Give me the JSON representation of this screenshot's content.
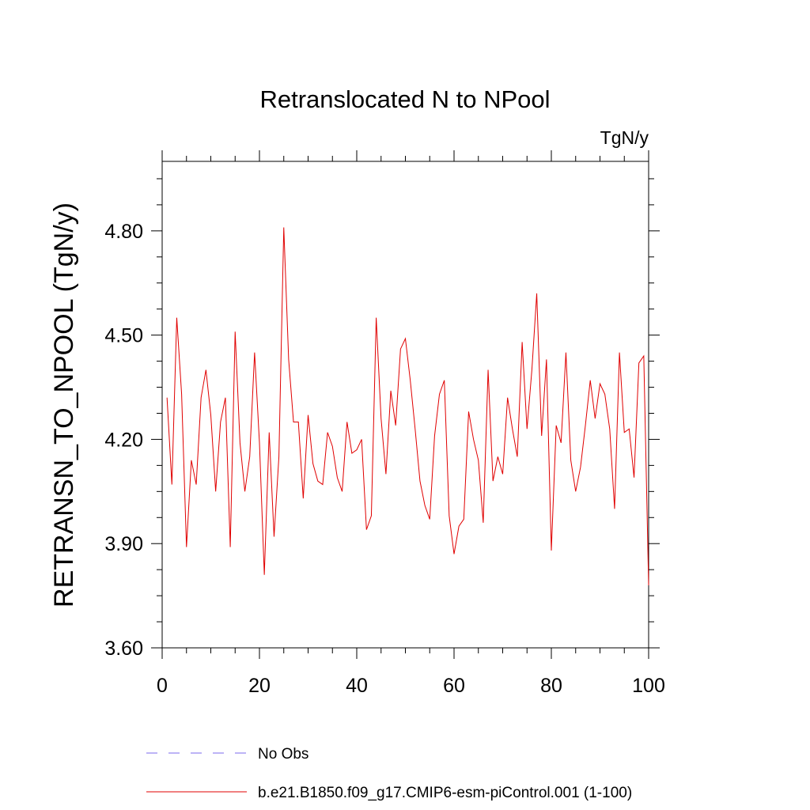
{
  "chart_data": {
    "type": "line",
    "title": "Retranslocated N to NPool",
    "units": "TgN/y",
    "ylabel": "RETRANSN_TO_NPOOL  (TgN/y)",
    "xlabel": "",
    "xlim": [
      0,
      100
    ],
    "ylim": [
      3.6,
      5.0
    ],
    "xticks": [
      0,
      20,
      40,
      60,
      80,
      100
    ],
    "xtick_labels": [
      "0",
      "20",
      "40",
      "60",
      "80",
      "100"
    ],
    "yticks": [
      3.6,
      3.9,
      4.2,
      4.5,
      4.8
    ],
    "ytick_labels": [
      "3.60",
      "3.90",
      "4.20",
      "4.50",
      "4.80"
    ],
    "grid": false,
    "legend_position": "bottom",
    "legend": [
      {
        "label": "No Obs",
        "color": "#7b68ee",
        "style": "dashed"
      },
      {
        "label": "b.e21.B1850.f09_g17.CMIP6-esm-piControl.001 (1-100)",
        "color": "#e00000",
        "style": "solid"
      }
    ],
    "series": [
      {
        "name": "b.e21.B1850.f09_g17.CMIP6-esm-piControl.001 (1-100)",
        "color": "#e00000",
        "x": [
          1,
          2,
          3,
          4,
          5,
          6,
          7,
          8,
          9,
          10,
          11,
          12,
          13,
          14,
          15,
          16,
          17,
          18,
          19,
          20,
          21,
          22,
          23,
          24,
          25,
          26,
          27,
          28,
          29,
          30,
          31,
          32,
          33,
          34,
          35,
          36,
          37,
          38,
          39,
          40,
          41,
          42,
          43,
          44,
          45,
          46,
          47,
          48,
          49,
          50,
          51,
          52,
          53,
          54,
          55,
          56,
          57,
          58,
          59,
          60,
          61,
          62,
          63,
          64,
          65,
          66,
          67,
          68,
          69,
          70,
          71,
          72,
          73,
          74,
          75,
          76,
          77,
          78,
          79,
          80,
          81,
          82,
          83,
          84,
          85,
          86,
          87,
          88,
          89,
          90,
          91,
          92,
          93,
          94,
          95,
          96,
          97,
          98,
          99,
          100
        ],
        "values": [
          4.32,
          4.07,
          4.55,
          4.33,
          3.89,
          4.14,
          4.07,
          4.32,
          4.4,
          4.27,
          4.05,
          4.25,
          4.32,
          3.89,
          4.51,
          4.19,
          4.05,
          4.15,
          4.45,
          4.19,
          3.81,
          4.22,
          3.92,
          4.15,
          4.81,
          4.43,
          4.25,
          4.25,
          4.03,
          4.27,
          4.13,
          4.08,
          4.07,
          4.22,
          4.18,
          4.09,
          4.05,
          4.25,
          4.16,
          4.17,
          4.2,
          3.94,
          3.98,
          4.55,
          4.26,
          4.1,
          4.34,
          4.24,
          4.46,
          4.49,
          4.37,
          4.23,
          4.08,
          4.01,
          3.97,
          4.21,
          4.33,
          4.37,
          3.98,
          3.87,
          3.95,
          3.97,
          4.28,
          4.2,
          4.14,
          3.96,
          4.4,
          4.08,
          4.15,
          4.1,
          4.32,
          4.23,
          4.15,
          4.48,
          4.23,
          4.4,
          4.62,
          4.21,
          4.43,
          3.88,
          4.24,
          4.19,
          4.45,
          4.14,
          4.05,
          4.12,
          4.24,
          4.37,
          4.26,
          4.36,
          4.33,
          4.23,
          4.0,
          4.45,
          4.22,
          4.23,
          4.09,
          4.42,
          4.44,
          3.78
        ]
      }
    ]
  }
}
